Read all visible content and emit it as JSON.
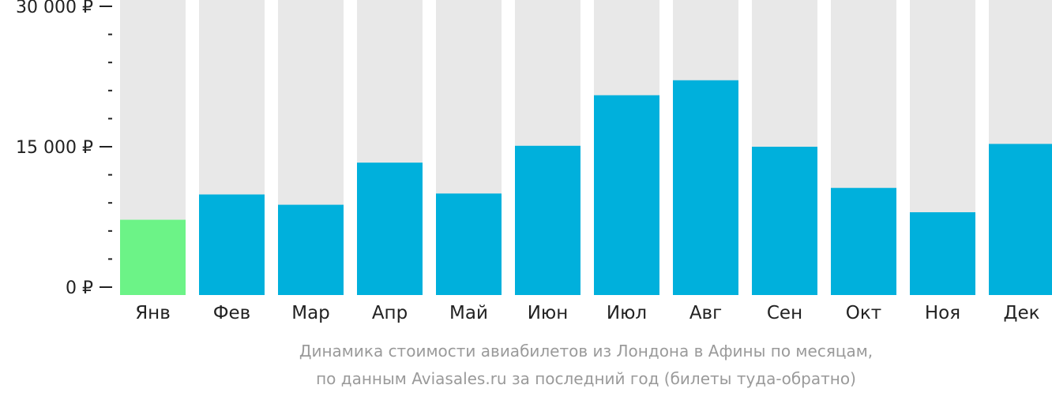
{
  "chart_data": {
    "type": "bar",
    "categories": [
      "Янв",
      "Фев",
      "Мар",
      "Апр",
      "Май",
      "Июн",
      "Июл",
      "Авг",
      "Сен",
      "Окт",
      "Ноя",
      "Дек"
    ],
    "values": [
      7200,
      9900,
      8800,
      13300,
      10000,
      15100,
      20500,
      22100,
      15000,
      10600,
      8000,
      15300
    ],
    "ylim": [
      0,
      30000
    ],
    "y_ticks": [
      0,
      15000,
      30000
    ],
    "y_tick_labels": [
      "0 ₽",
      "15 000 ₽",
      "30 000 ₽"
    ],
    "minor_ticks_per_interval": 5,
    "highlight_index": 0,
    "colors": {
      "bar": "#00b0dc",
      "highlight": "#6cf387",
      "background_bar": "#e8e8e8",
      "axis": "#222222",
      "caption": "#9a9a9a"
    },
    "caption": [
      "Динамика стоимости авиабилетов из Лондона в Афины по месяцам,",
      "по данным Aviasales.ru за последний год (билеты туда-обратно)"
    ]
  }
}
